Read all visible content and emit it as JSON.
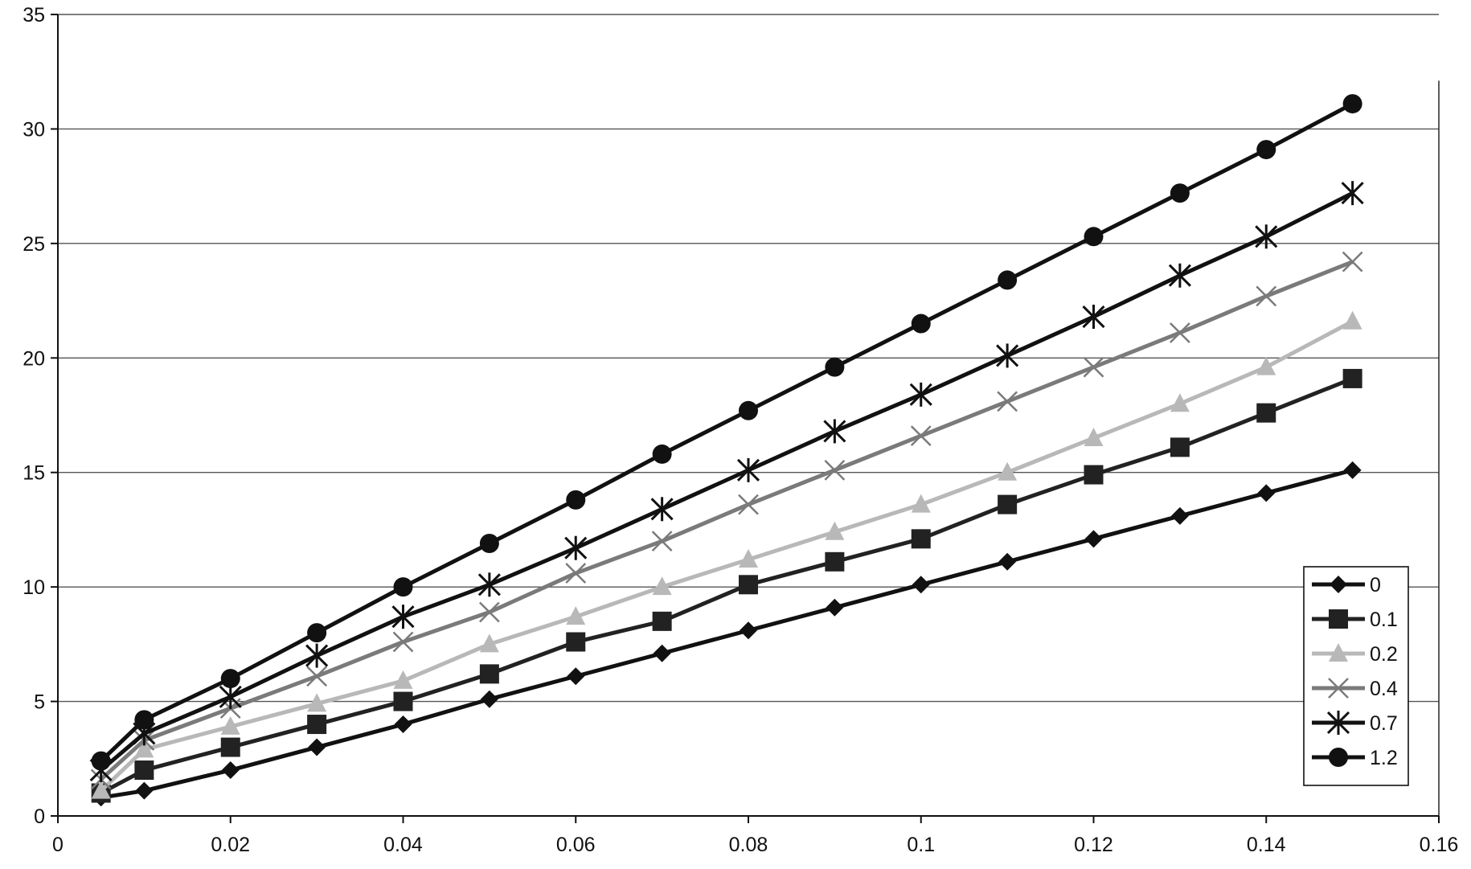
{
  "chart_data": {
    "type": "line",
    "title": "",
    "xlabel": "",
    "ylabel": "",
    "xlim": [
      0,
      0.16
    ],
    "ylim": [
      0,
      35
    ],
    "x_ticks": [
      "0",
      "0.02",
      "0.04",
      "0.06",
      "0.08",
      "0.1",
      "0.12",
      "0.14",
      "0.16"
    ],
    "y_ticks": [
      "0",
      "5",
      "10",
      "15",
      "20",
      "25",
      "30",
      "35"
    ],
    "grid": "horizontal",
    "legend_position": "bottom-right",
    "x": [
      0.005,
      0.01,
      0.02,
      0.03,
      0.04,
      0.05,
      0.06,
      0.07,
      0.08,
      0.09,
      0.1,
      0.11,
      0.12,
      0.13,
      0.14,
      0.15
    ],
    "series": [
      {
        "name": "0",
        "marker": "diamond",
        "color": "#111111",
        "values": [
          0.8,
          1.1,
          2.0,
          3.0,
          4.0,
          5.1,
          6.1,
          7.1,
          8.1,
          9.1,
          10.1,
          11.1,
          12.1,
          13.1,
          14.1,
          15.1
        ]
      },
      {
        "name": "0.1",
        "marker": "square",
        "color": "#222222",
        "values": [
          1.0,
          2.0,
          3.0,
          4.0,
          5.0,
          6.2,
          7.6,
          8.5,
          10.1,
          11.1,
          12.1,
          13.6,
          14.9,
          16.1,
          17.6,
          19.1
        ]
      },
      {
        "name": "0.2",
        "marker": "triangle",
        "color": "#b8b8b8",
        "values": [
          1.1,
          2.9,
          3.9,
          4.9,
          5.9,
          7.5,
          8.7,
          10.0,
          11.2,
          12.4,
          13.6,
          15.0,
          16.5,
          18.0,
          19.6,
          21.6
        ]
      },
      {
        "name": "0.4",
        "marker": "x",
        "color": "#7a7a7a",
        "values": [
          1.6,
          3.3,
          4.7,
          6.1,
          7.6,
          8.9,
          10.6,
          12.0,
          13.6,
          15.1,
          16.6,
          18.1,
          19.6,
          21.1,
          22.7,
          24.2
        ]
      },
      {
        "name": "0.7",
        "marker": "asterisk",
        "color": "#111111",
        "values": [
          2.0,
          3.6,
          5.2,
          7.0,
          8.7,
          10.1,
          11.7,
          13.4,
          15.1,
          16.8,
          18.4,
          20.1,
          21.8,
          23.6,
          25.3,
          27.2
        ]
      },
      {
        "name": "1.2",
        "marker": "circle",
        "color": "#111111",
        "values": [
          2.4,
          4.2,
          6.0,
          8.0,
          10.0,
          11.9,
          13.8,
          15.8,
          17.7,
          19.6,
          21.5,
          23.4,
          25.3,
          27.2,
          29.1,
          31.1
        ]
      }
    ]
  }
}
